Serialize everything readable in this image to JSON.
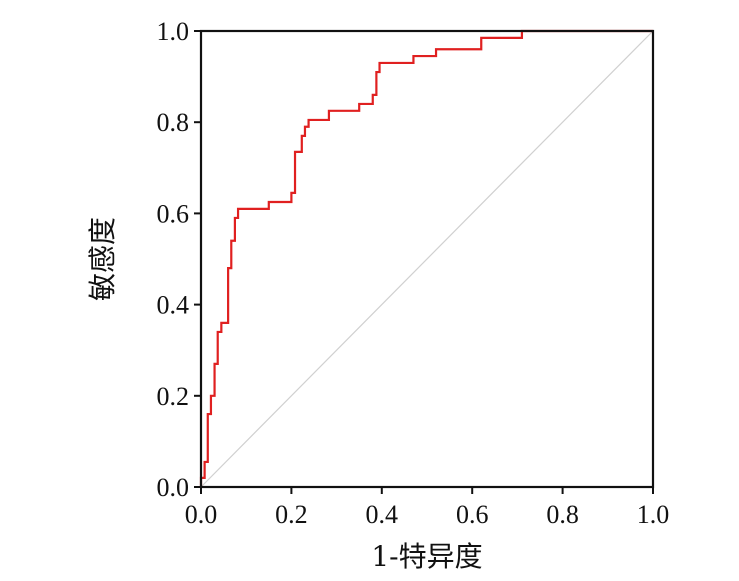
{
  "chart_data": {
    "type": "line",
    "title": "",
    "xlabel": "1-特异度",
    "ylabel": "敏感度",
    "xlim": [
      0,
      1
    ],
    "ylim": [
      0,
      1
    ],
    "grid": false,
    "xticks": [
      "0.0",
      "0.2",
      "0.4",
      "0.6",
      "0.8",
      "1.0"
    ],
    "yticks": [
      "0.0",
      "0.2",
      "0.4",
      "0.6",
      "0.8",
      "1.0"
    ],
    "series": [
      {
        "color": "#e02020",
        "step": true,
        "points": [
          [
            0.0,
            0.0
          ],
          [
            0.0,
            0.02
          ],
          [
            0.008,
            0.02
          ],
          [
            0.008,
            0.055
          ],
          [
            0.015,
            0.055
          ],
          [
            0.015,
            0.16
          ],
          [
            0.022,
            0.16
          ],
          [
            0.022,
            0.2
          ],
          [
            0.03,
            0.2
          ],
          [
            0.03,
            0.27
          ],
          [
            0.037,
            0.27
          ],
          [
            0.037,
            0.34
          ],
          [
            0.045,
            0.34
          ],
          [
            0.045,
            0.36
          ],
          [
            0.06,
            0.36
          ],
          [
            0.06,
            0.48
          ],
          [
            0.067,
            0.48
          ],
          [
            0.067,
            0.54
          ],
          [
            0.075,
            0.54
          ],
          [
            0.075,
            0.59
          ],
          [
            0.082,
            0.59
          ],
          [
            0.082,
            0.61
          ],
          [
            0.15,
            0.61
          ],
          [
            0.15,
            0.625
          ],
          [
            0.2,
            0.625
          ],
          [
            0.2,
            0.645
          ],
          [
            0.208,
            0.645
          ],
          [
            0.208,
            0.735
          ],
          [
            0.223,
            0.735
          ],
          [
            0.223,
            0.77
          ],
          [
            0.23,
            0.77
          ],
          [
            0.23,
            0.79
          ],
          [
            0.238,
            0.79
          ],
          [
            0.238,
            0.805
          ],
          [
            0.283,
            0.805
          ],
          [
            0.283,
            0.825
          ],
          [
            0.35,
            0.825
          ],
          [
            0.35,
            0.84
          ],
          [
            0.38,
            0.84
          ],
          [
            0.38,
            0.86
          ],
          [
            0.388,
            0.86
          ],
          [
            0.388,
            0.91
          ],
          [
            0.395,
            0.91
          ],
          [
            0.395,
            0.93
          ],
          [
            0.47,
            0.93
          ],
          [
            0.47,
            0.945
          ],
          [
            0.52,
            0.945
          ],
          [
            0.52,
            0.96
          ],
          [
            0.62,
            0.96
          ],
          [
            0.62,
            0.985
          ],
          [
            0.71,
            0.985
          ],
          [
            0.71,
            1.0
          ],
          [
            1.0,
            1.0
          ]
        ]
      },
      {
        "color": "#d0d0d0",
        "step": false,
        "points": [
          [
            0,
            0
          ],
          [
            1,
            1
          ]
        ]
      }
    ]
  }
}
